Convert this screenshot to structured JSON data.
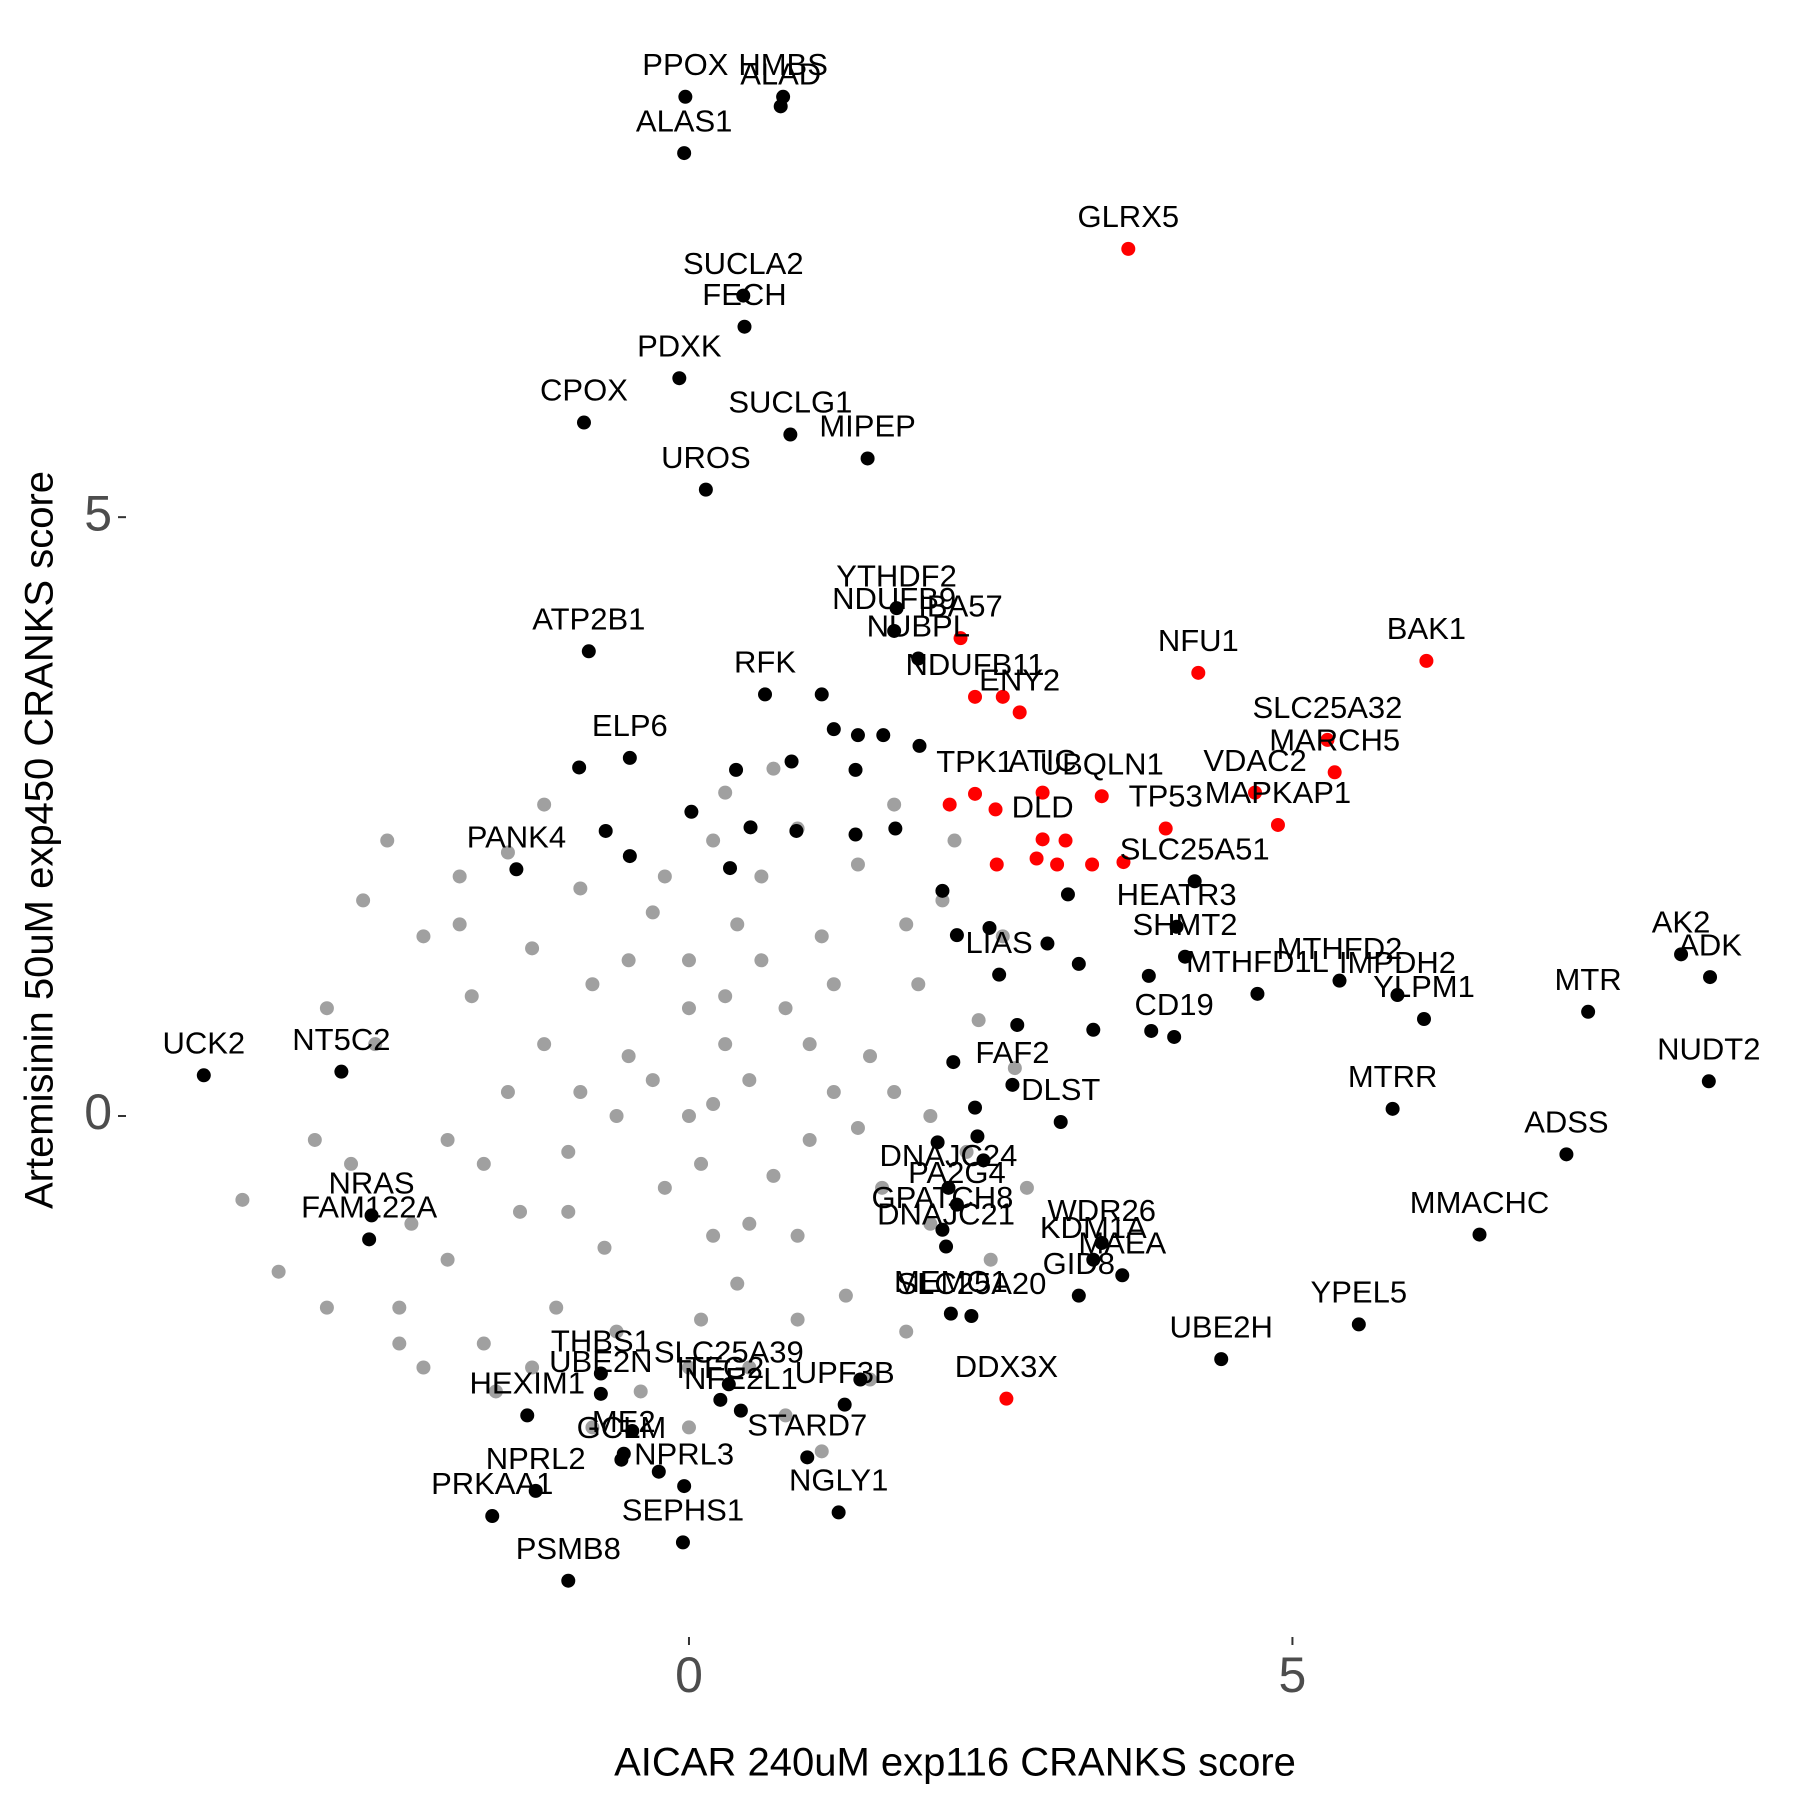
{
  "chart_data": {
    "type": "scatter",
    "x_label": "AICAR 240uM exp116 CRANKS score",
    "y_label": "Artemisinin 50uM exp450 CRANKS score",
    "xlim": [
      -4.3,
      8.7
    ],
    "ylim": [
      -4.3,
      8.6
    ],
    "xticks": [
      0,
      5
    ],
    "yticks": [
      0,
      5
    ],
    "series": [
      {
        "color": "#a0a0a0",
        "x": [
          0,
          0.5,
          -0.5,
          1,
          -1,
          0.3,
          0.8,
          -0.8,
          1.5,
          -1.5,
          0.2,
          0.9,
          -0.7,
          1.6,
          -1.4,
          0.4,
          1.1,
          -0.3,
          1.9,
          -1.8,
          2,
          -2,
          0.1,
          1.3,
          -1.1,
          0.6,
          1.4,
          -0.9,
          2.1,
          -2.2,
          2.3,
          -2.3,
          0.5,
          -0.4,
          1.8,
          -1.7,
          0.2,
          0.9,
          -1.5,
          2.2,
          -2.5,
          2.4,
          -2.6,
          -2.8,
          2.5,
          -2.4,
          0,
          0.8,
          -0.8,
          1.5,
          -3.7,
          -2.4,
          -2.2,
          -1.9,
          -1.6,
          0.3,
          -0.2,
          0.7,
          -0.6,
          1.2,
          -1.2,
          0,
          0.6,
          -0.5,
          1,
          -1,
          0.4,
          1.7,
          -1.7,
          0,
          1.2,
          -1.3,
          1.8,
          -1.9,
          2,
          -2,
          0.9,
          -0.6,
          0.5,
          -0.3,
          0.2,
          -0.9,
          1.4,
          0.1,
          -0.2,
          1.7,
          0.3,
          -1.2,
          0.7,
          2.6,
          -2.7,
          -3,
          -3.1,
          2.7,
          2.8,
          -3.4,
          -3,
          -1.3,
          1.1,
          0
        ],
        "y": [
          0,
          0.3,
          0.5,
          -0.2,
          -0.3,
          1,
          0.9,
          1.1,
          0.5,
          0.2,
          -1,
          -1,
          -1.1,
          -0.6,
          -0.8,
          1.6,
          1.5,
          1.7,
          1.1,
          1,
          0,
          -0.2,
          -1.7,
          -1.5,
          -1.6,
          2,
          2.1,
          1.9,
          1.8,
          1.5,
          -0.3,
          -0.9,
          -2.1,
          -2.3,
          -1.8,
          -1.9,
          2.3,
          2.4,
          2.2,
          2.3,
          2.3,
          0.8,
          0.6,
          -0.4,
          -1.2,
          -1.6,
          -2.6,
          -2.5,
          -2.6,
          -2.2,
          -0.7,
          -1.9,
          -2.1,
          2,
          -2.3,
          0.6,
          -0.6,
          -0.5,
          0,
          0.2,
          0.6,
          0.9,
          1.3,
          1.3,
          0.6,
          -0.8,
          -1.4,
          0.2,
          -0.4,
          1.3,
          1.1,
          1.4,
          1.6,
          1.6,
          -0.9,
          -1.2,
          -1.7,
          -1.8,
          -0.9,
          0.3,
          0.1,
          0.2,
          -0.1,
          -0.4,
          2,
          2.6,
          2.7,
          2.6,
          2.9,
          1.5,
          1.8,
          0.9,
          -0.2,
          0.4,
          -0.6,
          -1.3,
          -1.6,
          -2.1,
          -2.8,
          -2.1
        ]
      },
      {
        "color": "#000000",
        "x": [
          -0.03,
          0.78,
          0.76,
          -0.04,
          0.45,
          0.46,
          -0.08,
          0.84,
          -0.87,
          1.48,
          0.14,
          1.72,
          1.7,
          1.9,
          -0.83,
          0.63,
          -0.49,
          -1.43,
          4.19,
          4.04,
          5.39,
          8.22,
          4.11,
          5.87,
          8.46,
          4.71,
          2.57,
          6.09,
          7.45,
          4.02,
          -2.88,
          2.68,
          8.45,
          -4.02,
          5.83,
          7.27,
          3.08,
          2.15,
          2.22,
          3.42,
          3.35,
          -2.63,
          6.55,
          3.59,
          2.13,
          2.1,
          -2.65,
          2.34,
          3.23,
          5.55,
          -0.73,
          0.33,
          4.41,
          1.29,
          -0.73,
          0.26,
          -1.34,
          0.43,
          2.17,
          0.98,
          -0.56,
          -0.04,
          -1.27,
          1.24,
          -1.63,
          -0.05,
          -1,
          1.1,
          1.2,
          1.4,
          1.61,
          1.91,
          0.85,
          0.39,
          1.38,
          0.02,
          0.51,
          0.89,
          1.38,
          1.71,
          -0.69,
          -0.91,
          -0.49,
          0.34,
          2.1,
          2.49,
          2.22,
          2.97,
          3.14,
          3.23,
          2.72,
          2.19,
          2.37,
          2.39,
          2.44,
          2.06,
          3.81,
          3.83,
          3.35,
          -0.47,
          -0.25,
          -0.54,
          1.42
        ],
        "y": [
          8.51,
          8.51,
          8.43,
          8.04,
          6.85,
          6.59,
          6.16,
          5.69,
          5.79,
          5.49,
          5.23,
          4.24,
          4.05,
          3.82,
          3.88,
          3.52,
          2.99,
          2.06,
          1.96,
          1.58,
          1.13,
          1.35,
          1.33,
          1.01,
          1.16,
          1.02,
          1.18,
          0.81,
          0.87,
          0.66,
          0.37,
          0.26,
          0.29,
          0.34,
          0.06,
          -0.32,
          -0.05,
          -0.6,
          -0.74,
          -1.06,
          -1.2,
          -0.83,
          -0.99,
          -1.33,
          -1.09,
          -0.95,
          -1.03,
          -1.67,
          -1.5,
          -1.74,
          -2.15,
          -2.24,
          -2.03,
          -2.41,
          -2.32,
          -2.37,
          -2.5,
          -2.46,
          -1.65,
          -2.85,
          -2.87,
          -3.09,
          -3.13,
          -3.31,
          -3.34,
          -3.56,
          -3.88,
          3.52,
          3.23,
          3.18,
          3.18,
          3.09,
          2.96,
          2.89,
          2.89,
          2.54,
          2.41,
          2.38,
          2.35,
          2.4,
          2.38,
          2.91,
          2.17,
          2.07,
          1.88,
          1.57,
          1.51,
          1.44,
          1.85,
          1.27,
          0.76,
          0.45,
          0.07,
          -0.17,
          -0.37,
          -0.22,
          1.17,
          0.71,
          0.72,
          -2.63,
          -2.97,
          -2.82,
          -2.2
        ],
        "labels": [
          "PPOX",
          "HMBS",
          "ALAD",
          "ALAS1",
          "SUCLA2",
          "FECH",
          "PDXK",
          "SUCLG1",
          "CPOX",
          "MIPEP",
          "UROS",
          "YTHDF2",
          "NDUFB9",
          "NUBPL",
          "ATP2B1",
          "RFK",
          "ELP6",
          "PANK4",
          "SLC25A51",
          "HEATR3",
          "MTHFD2",
          "AK2",
          "SHMT2",
          "IMPDH2",
          "ADK",
          "MTHFD1L",
          "LIAS",
          "YLPM1",
          "MTR",
          "CD19",
          "NT5C2",
          "FAF2",
          "NUDT2",
          "UCK2",
          "MTRR",
          "ADSS",
          "DLST",
          "DNAJC24",
          "PA2G4",
          "WDR26",
          "KDM1A",
          "NRAS",
          "MMACHC",
          "MAEA",
          "DNAJC21",
          "GPATCH8",
          "FAM122A",
          "SLC25A20",
          "GID8",
          "YPEL5",
          "THBS1",
          "SLC25A39",
          "UBE2H",
          "UPF3B",
          "UBE2N",
          "ITFG2",
          "HEXIM1",
          "NFE2L1",
          "MEMO1",
          "STARD7",
          "GCLM",
          "NPRL3",
          "NPRL2",
          "NGLY1",
          "PRKAA1",
          "SEPHS1",
          "PSMB8",
          null,
          null,
          null,
          null,
          null,
          null,
          null,
          null,
          null,
          null,
          null,
          null,
          null,
          null,
          null,
          null,
          null,
          null,
          null,
          null,
          null,
          null,
          null,
          null,
          null,
          null,
          null,
          null,
          null,
          null,
          null,
          null,
          null,
          null,
          "ME2"
        ]
      },
      {
        "color": "#ff0000",
        "x": [
          3.64,
          2.25,
          4.22,
          6.11,
          2.74,
          2.37,
          2.93,
          5.29,
          5.35,
          2.37,
          3.42,
          4.69,
          4.88,
          3.95,
          2.93,
          2.63,
          2.16,
          2.54,
          3.12,
          2.55,
          3.34,
          3.05,
          2.88,
          2.6,
          3.6
        ],
        "y": [
          7.24,
          3.99,
          3.7,
          3.8,
          3.37,
          3.5,
          2.7,
          3.14,
          2.87,
          2.69,
          2.67,
          2.7,
          2.43,
          2.4,
          2.31,
          -2.36,
          2.6,
          2.56,
          2.3,
          2.1,
          2.1,
          2.1,
          2.15,
          3.5,
          2.12
        ],
        "labels": [
          "GLRX5",
          "IBA57",
          "NFU1",
          "BAK1",
          "ENY2",
          "NDUFB11",
          "ATIC",
          "SLC25A32",
          "MARCH5",
          "TPK1",
          "UBQLN1",
          "VDAC2",
          "MAPKAP1",
          "TP53",
          "DLD",
          "DDX3X",
          null,
          null,
          null,
          null,
          null,
          null,
          null,
          null,
          null
        ]
      }
    ]
  }
}
